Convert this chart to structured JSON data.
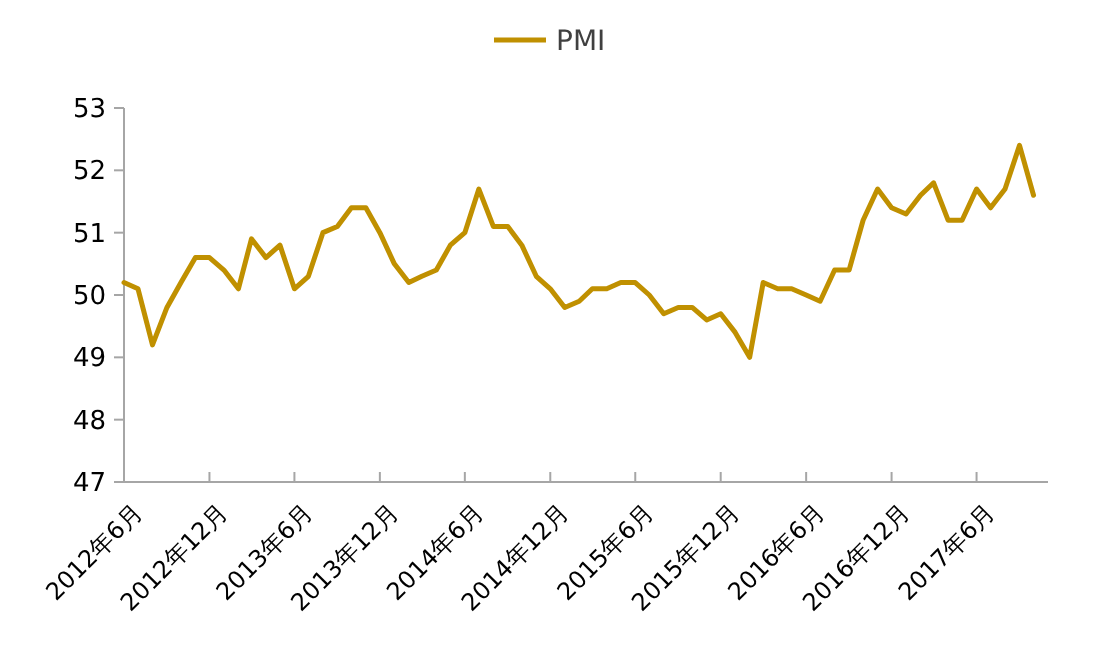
{
  "chart_data": {
    "type": "line",
    "legend": "top",
    "grid": false,
    "marker": "none",
    "line_style": "solid",
    "x": [
      "2012-06",
      "2012-07",
      "2012-08",
      "2012-09",
      "2012-10",
      "2012-11",
      "2012-12",
      "2013-01",
      "2013-02",
      "2013-03",
      "2013-04",
      "2013-05",
      "2013-06",
      "2013-07",
      "2013-08",
      "2013-09",
      "2013-10",
      "2013-11",
      "2013-12",
      "2014-01",
      "2014-02",
      "2014-03",
      "2014-04",
      "2014-05",
      "2014-06",
      "2014-07",
      "2014-08",
      "2014-09",
      "2014-10",
      "2014-11",
      "2014-12",
      "2015-01",
      "2015-02",
      "2015-03",
      "2015-04",
      "2015-05",
      "2015-06",
      "2015-07",
      "2015-08",
      "2015-09",
      "2015-10",
      "2015-11",
      "2015-12",
      "2016-01",
      "2016-02",
      "2016-03",
      "2016-04",
      "2016-05",
      "2016-06",
      "2016-07",
      "2016-08",
      "2016-09",
      "2016-10",
      "2016-11",
      "2016-12",
      "2017-01",
      "2017-02",
      "2017-03",
      "2017-04",
      "2017-05",
      "2017-06",
      "2017-07",
      "2017-08",
      "2017-09",
      "2017-10"
    ],
    "series": [
      {
        "name": "PMI",
        "color": "#c09000",
        "values": [
          50.2,
          50.1,
          49.2,
          49.8,
          50.2,
          50.6,
          50.6,
          50.4,
          50.1,
          50.9,
          50.6,
          50.8,
          50.1,
          50.3,
          51.0,
          51.1,
          51.4,
          51.4,
          51.0,
          50.5,
          50.2,
          50.3,
          50.4,
          50.8,
          51.0,
          51.7,
          51.1,
          51.1,
          50.8,
          50.3,
          50.1,
          49.8,
          49.9,
          50.1,
          50.1,
          50.2,
          50.2,
          50.0,
          49.7,
          49.8,
          49.8,
          49.6,
          49.7,
          49.4,
          49.0,
          50.2,
          50.1,
          50.1,
          50.0,
          49.9,
          50.4,
          50.4,
          51.2,
          51.7,
          51.4,
          51.3,
          51.6,
          51.8,
          51.2,
          51.2,
          51.7,
          51.4,
          51.7,
          52.4,
          51.6
        ]
      }
    ],
    "xlim": [
      "2012-06",
      "2017-11"
    ],
    "xticks": [
      {
        "value": "2012-06",
        "label": "2012年6月"
      },
      {
        "value": "2012-12",
        "label": "2012年12月"
      },
      {
        "value": "2013-06",
        "label": "2013年6月"
      },
      {
        "value": "2013-12",
        "label": "2013年12月"
      },
      {
        "value": "2014-06",
        "label": "2014年6月"
      },
      {
        "value": "2014-12",
        "label": "2014年12月"
      },
      {
        "value": "2015-06",
        "label": "2015年6月"
      },
      {
        "value": "2015-12",
        "label": "2015年12月"
      },
      {
        "value": "2016-06",
        "label": "2016年6月"
      },
      {
        "value": "2016-12",
        "label": "2016年12月"
      },
      {
        "value": "2017-06",
        "label": "2017年6月"
      }
    ],
    "ylim": [
      47,
      53
    ],
    "yticks": [
      47,
      48,
      49,
      50,
      51,
      52,
      53
    ]
  }
}
